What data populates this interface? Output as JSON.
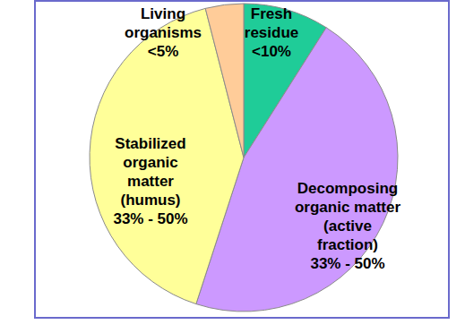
{
  "chart_data": {
    "type": "pie",
    "categories": [
      "Fresh\nresidue",
      "Decomposing\norganic matter\n(active\nfraction)",
      "Stabilized\norganic\nmatter\n(humus)",
      "Living\norganisms"
    ],
    "values": [
      9,
      46,
      41,
      4
    ],
    "value_labels": [
      "<10%",
      "33% - 50%",
      "33% - 50%",
      "<5%"
    ],
    "colors": [
      "#1fcc98",
      "#cc99ff",
      "#ffff99",
      "#ffcc99"
    ],
    "data_labels": true
  }
}
